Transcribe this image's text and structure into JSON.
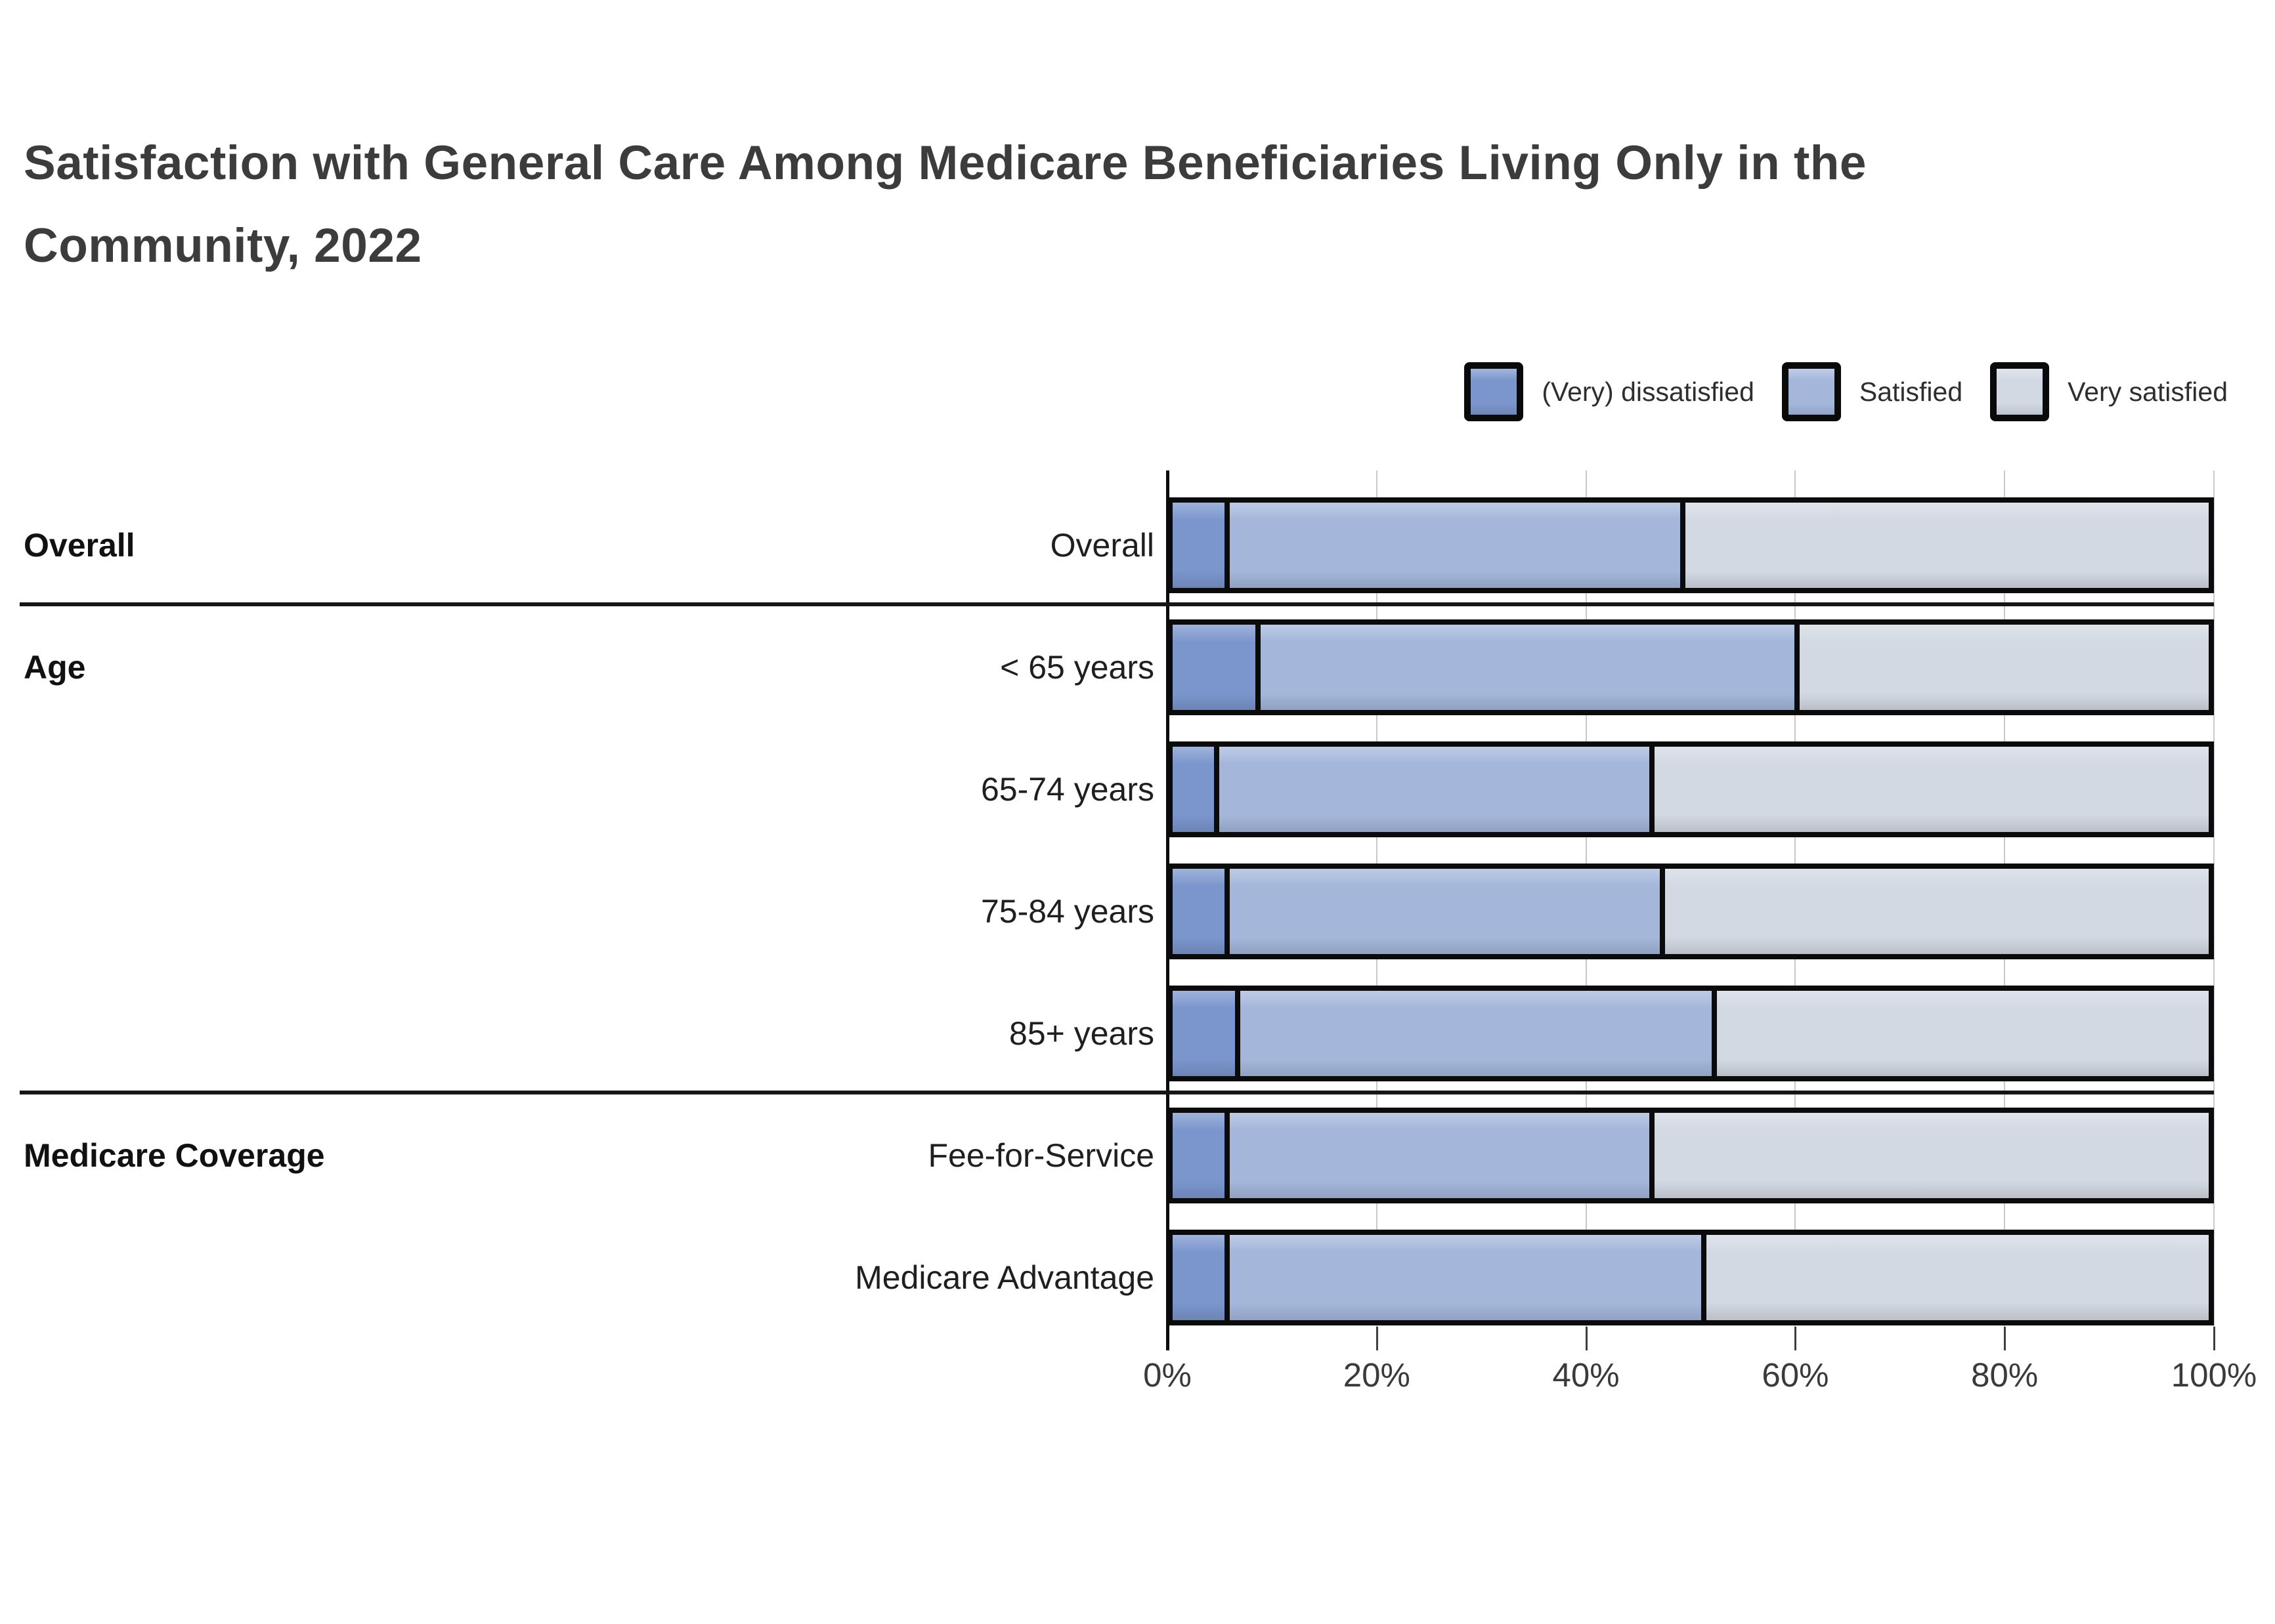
{
  "title_lines": {
    "line1": "Satisfaction with General Care Among Medicare Beneficiaries Living Only in the",
    "line2": "Community, 2022"
  },
  "chart_data": {
    "type": "bar",
    "orientation": "horizontal",
    "stacked": true,
    "unit": "percent",
    "title": "Satisfaction with General Care Among Medicare Beneficiaries Living Only in the Community, 2022",
    "xlim": [
      0,
      100
    ],
    "x_tick_labels": [
      "0%",
      "20%",
      "40%",
      "60%",
      "80%",
      "100%"
    ],
    "grid": "vertical",
    "legend_position": "top-right",
    "categories": [
      "Overall",
      "< 65 years",
      "65-74 years",
      "75-84 years",
      "85+ years",
      "Fee-for-Service",
      "Medicare Advantage"
    ],
    "row_groups": [
      {
        "label": "Overall",
        "rows": [
          0
        ]
      },
      {
        "label": "Age",
        "rows": [
          1,
          2,
          3,
          4
        ]
      },
      {
        "label": "Medicare Coverage",
        "rows": [
          5,
          6
        ]
      }
    ],
    "series": [
      {
        "name": "(Very) dissatisfied",
        "color": "#7B96CD",
        "values": [
          5,
          8,
          4,
          5,
          6,
          5,
          5
        ]
      },
      {
        "name": "Satisfied",
        "color": "#A4B7DB",
        "values": [
          44,
          52,
          42,
          42,
          46,
          41,
          46
        ]
      },
      {
        "name": "Very satisfied",
        "color": "#D3D9E3",
        "values": [
          51,
          40,
          54,
          53,
          48,
          54,
          49
        ]
      }
    ]
  },
  "colors": {
    "outline": "#0B0B0B",
    "gridline": "#C9C9C9",
    "title_text": "#3C3C3C",
    "label_text": "#1F1F1F",
    "tick_text": "#3A3A3A"
  }
}
